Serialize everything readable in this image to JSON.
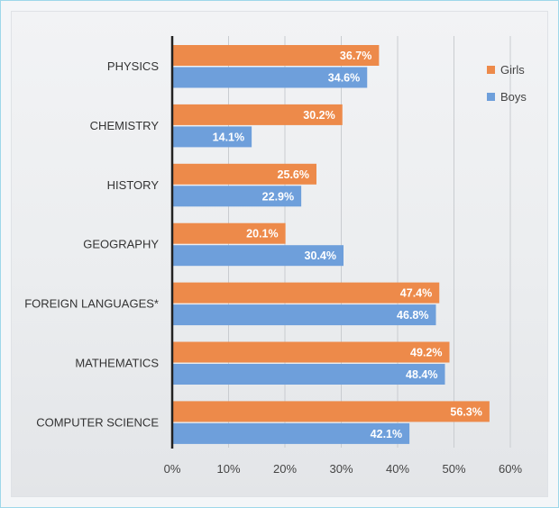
{
  "chart_data": {
    "type": "bar",
    "orientation": "horizontal",
    "categories": [
      "PHYSICS",
      "CHEMISTRY",
      "HISTORY",
      "GEOGRAPHY",
      "FOREIGN LANGUAGES*",
      "MATHEMATICS",
      "COMPUTER SCIENCE"
    ],
    "series": [
      {
        "name": "Girls",
        "color": "#ed8a4a",
        "values": [
          36.7,
          30.2,
          25.6,
          20.1,
          47.4,
          49.2,
          56.3
        ],
        "labels": [
          "36.7%",
          "30.2%",
          "25.6%",
          "20.1%",
          "47.4%",
          "49.2%",
          "56.3%"
        ]
      },
      {
        "name": "Boys",
        "color": "#6e9fdb",
        "values": [
          34.6,
          14.1,
          22.9,
          30.4,
          46.8,
          48.4,
          42.1
        ],
        "labels": [
          "34.6%",
          "14.1%",
          "22.9%",
          "30.4%",
          "46.8%",
          "48.4%",
          "42.1%"
        ]
      }
    ],
    "xlim": [
      0,
      60
    ],
    "xticks": [
      "0%",
      "10%",
      "20%",
      "30%",
      "40%",
      "50%",
      "60%"
    ],
    "grid": "vertical",
    "legend": "top-right",
    "title": "",
    "xlabel": "",
    "ylabel": ""
  }
}
